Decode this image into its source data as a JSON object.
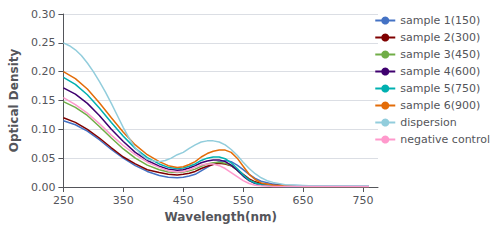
{
  "chart_data": {
    "type": "line",
    "xlabel": "Wavelength(nm)",
    "ylabel": "Optical Density",
    "xlim": [
      250,
      775
    ],
    "ylim": [
      0,
      0.3
    ],
    "xticks": [
      250,
      350,
      450,
      550,
      650,
      750
    ],
    "yticks": [
      {
        "value": 0,
        "label": "0.00"
      },
      {
        "value": 0.05,
        "label": "0.05"
      },
      {
        "value": 0.1,
        "label": "0.10"
      },
      {
        "value": 0.15,
        "label": "0.15"
      },
      {
        "value": 0.2,
        "label": "0.20"
      },
      {
        "value": 0.25,
        "label": "0.25"
      },
      {
        "value": 0.3,
        "label": "0.30"
      }
    ],
    "grid": true,
    "legend": "right",
    "series": [
      {
        "name": "sample 1(150)",
        "color": "#4472C4",
        "x": [
          250,
          270,
          290,
          310,
          330,
          350,
          370,
          390,
          410,
          425,
          440,
          450,
          460,
          470,
          480,
          490,
          500,
          510,
          520,
          530,
          540,
          550,
          560,
          570,
          580,
          600,
          620,
          650,
          700,
          750,
          760
        ],
        "values": [
          0.115,
          0.108,
          0.097,
          0.082,
          0.065,
          0.05,
          0.037,
          0.027,
          0.02,
          0.017,
          0.016,
          0.017,
          0.019,
          0.022,
          0.028,
          0.034,
          0.04,
          0.044,
          0.046,
          0.044,
          0.038,
          0.03,
          0.022,
          0.015,
          0.01,
          0.005,
          0.003,
          0.002,
          0.001,
          0.001,
          0.001
        ]
      },
      {
        "name": "sample 2(300)",
        "color": "#7F0000",
        "x": [
          250,
          270,
          290,
          310,
          330,
          350,
          370,
          390,
          410,
          425,
          440,
          450,
          460,
          470,
          480,
          490,
          500,
          510,
          520,
          530,
          540,
          550,
          560,
          570,
          580,
          600,
          620,
          650,
          700,
          750,
          760
        ],
        "values": [
          0.12,
          0.112,
          0.1,
          0.085,
          0.068,
          0.052,
          0.04,
          0.03,
          0.025,
          0.022,
          0.021,
          0.022,
          0.024,
          0.027,
          0.032,
          0.036,
          0.039,
          0.041,
          0.04,
          0.037,
          0.03,
          0.022,
          0.014,
          0.009,
          0.006,
          0.003,
          0.002,
          0.002,
          0.001,
          0.001,
          0.001
        ]
      },
      {
        "name": "sample 3(450)",
        "color": "#70AD47",
        "x": [
          250,
          270,
          290,
          310,
          330,
          350,
          370,
          390,
          410,
          425,
          440,
          450,
          460,
          470,
          480,
          490,
          500,
          510,
          520,
          530,
          540,
          550,
          560,
          570,
          580,
          600,
          620,
          650,
          700,
          750,
          760
        ],
        "values": [
          0.148,
          0.138,
          0.124,
          0.105,
          0.085,
          0.066,
          0.05,
          0.038,
          0.03,
          0.026,
          0.025,
          0.026,
          0.028,
          0.031,
          0.036,
          0.04,
          0.042,
          0.043,
          0.041,
          0.037,
          0.029,
          0.02,
          0.012,
          0.007,
          0.004,
          0.002,
          0.001,
          0.001,
          0.001,
          0.001,
          0.001
        ]
      },
      {
        "name": "sample 4(600)",
        "color": "#3F006F",
        "x": [
          250,
          270,
          290,
          310,
          330,
          350,
          370,
          390,
          410,
          425,
          440,
          450,
          460,
          470,
          480,
          490,
          500,
          510,
          520,
          530,
          540,
          550,
          560,
          570,
          580,
          600,
          620,
          650,
          700,
          750,
          760
        ],
        "values": [
          0.172,
          0.161,
          0.145,
          0.124,
          0.1,
          0.079,
          0.06,
          0.046,
          0.036,
          0.031,
          0.029,
          0.03,
          0.033,
          0.037,
          0.042,
          0.045,
          0.047,
          0.047,
          0.044,
          0.038,
          0.029,
          0.019,
          0.011,
          0.006,
          0.004,
          0.002,
          0.001,
          0.001,
          0.001,
          0.001,
          0.001
        ]
      },
      {
        "name": "sample 5(750)",
        "color": "#00B0B0",
        "x": [
          250,
          270,
          290,
          310,
          330,
          350,
          370,
          390,
          410,
          425,
          440,
          450,
          460,
          470,
          480,
          490,
          500,
          510,
          520,
          530,
          540,
          550,
          560,
          570,
          580,
          600,
          620,
          650,
          700,
          750,
          760
        ],
        "values": [
          0.19,
          0.178,
          0.16,
          0.137,
          0.112,
          0.088,
          0.067,
          0.051,
          0.04,
          0.034,
          0.032,
          0.033,
          0.036,
          0.04,
          0.046,
          0.05,
          0.052,
          0.052,
          0.049,
          0.042,
          0.032,
          0.021,
          0.012,
          0.007,
          0.004,
          0.002,
          0.001,
          0.001,
          0.001,
          0.001,
          0.001
        ]
      },
      {
        "name": "sample 6(900)",
        "color": "#E36C09",
        "x": [
          250,
          270,
          290,
          310,
          330,
          350,
          370,
          390,
          410,
          425,
          440,
          450,
          460,
          470,
          480,
          490,
          500,
          510,
          520,
          530,
          540,
          550,
          560,
          570,
          580,
          600,
          620,
          650,
          700,
          750,
          760
        ],
        "values": [
          0.2,
          0.188,
          0.17,
          0.146,
          0.12,
          0.095,
          0.073,
          0.056,
          0.044,
          0.037,
          0.034,
          0.035,
          0.039,
          0.044,
          0.052,
          0.058,
          0.062,
          0.064,
          0.064,
          0.06,
          0.05,
          0.036,
          0.022,
          0.013,
          0.007,
          0.003,
          0.002,
          0.001,
          0.001,
          0.001,
          0.001
        ]
      },
      {
        "name": "dispersion",
        "color": "#92CDDC",
        "x": [
          250,
          260,
          270,
          280,
          290,
          300,
          310,
          320,
          330,
          340,
          350,
          360,
          370,
          380,
          390,
          400,
          410,
          420,
          430,
          440,
          450,
          460,
          470,
          480,
          490,
          500,
          510,
          520,
          530,
          540,
          550,
          560,
          570,
          580,
          590,
          600,
          620,
          640,
          660,
          700,
          740,
          760
        ],
        "values": [
          0.25,
          0.245,
          0.238,
          0.228,
          0.215,
          0.2,
          0.183,
          0.165,
          0.145,
          0.124,
          0.103,
          0.084,
          0.068,
          0.056,
          0.048,
          0.045,
          0.044,
          0.046,
          0.05,
          0.056,
          0.06,
          0.067,
          0.073,
          0.078,
          0.08,
          0.08,
          0.078,
          0.073,
          0.065,
          0.055,
          0.043,
          0.032,
          0.023,
          0.016,
          0.011,
          0.008,
          0.004,
          0.003,
          0.002,
          0.002,
          0.002,
          0.002
        ]
      },
      {
        "name": "negative control",
        "color": "#FF99CC",
        "x": [
          250,
          270,
          290,
          310,
          330,
          350,
          370,
          390,
          410,
          425,
          440,
          450,
          460,
          470,
          480,
          490,
          500,
          510,
          520,
          530,
          540,
          550,
          560,
          570,
          580,
          600,
          620,
          650,
          700,
          750,
          760
        ],
        "values": [
          0.155,
          0.143,
          0.128,
          0.11,
          0.09,
          0.072,
          0.056,
          0.043,
          0.034,
          0.028,
          0.026,
          0.027,
          0.03,
          0.034,
          0.038,
          0.04,
          0.04,
          0.037,
          0.032,
          0.025,
          0.018,
          0.011,
          0.006,
          0.003,
          0.002,
          0.001,
          0.001,
          0.001,
          0.001,
          0.001,
          0.001
        ]
      }
    ]
  }
}
